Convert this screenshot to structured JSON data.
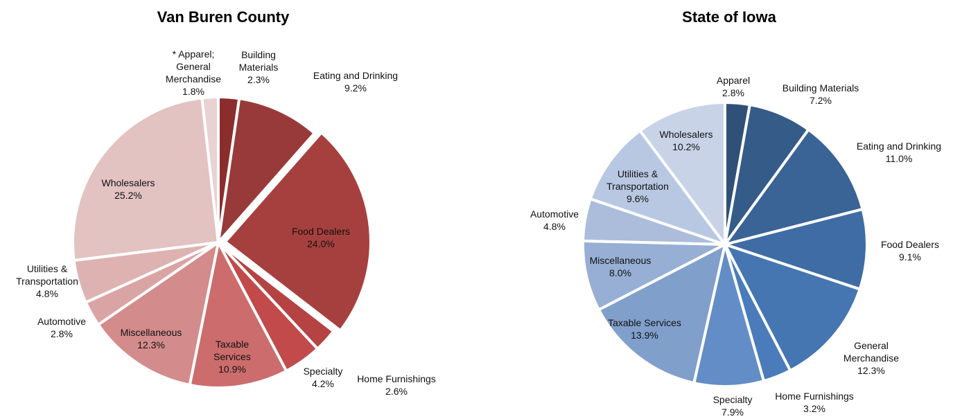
{
  "chart_data": [
    {
      "type": "pie",
      "title": "Van Buren County",
      "categories": [
        "Building Materials",
        "Eating and Drinking",
        "Food Dealers",
        "Home Furnishings",
        "Specialty",
        "Taxable Services",
        "Miscellaneous",
        "Automotive",
        "Utilities & Transportation",
        "Wholesalers",
        "* Apparel; General Merchandise"
      ],
      "values": [
        2.3,
        9.2,
        24.0,
        2.6,
        4.2,
        10.9,
        12.3,
        2.8,
        4.8,
        25.2,
        1.8
      ],
      "value_labels": [
        "2.3%",
        "9.2%",
        "24.0%",
        "2.6%",
        "4.2%",
        "10.9%",
        "12.3%",
        "2.8%",
        "4.8%",
        "25.2%",
        "1.8%"
      ],
      "colors": [
        "#8c2d2d",
        "#993a3a",
        "#a6403e",
        "#b54343",
        "#c24a4a",
        "#cc6c6c",
        "#d38b8b",
        "#dba4a4",
        "#dfb2b2",
        "#e3c2c2",
        "#e8d2d2"
      ]
    },
    {
      "type": "pie",
      "title": "State of Iowa",
      "categories": [
        "Apparel",
        "Building Materials",
        "Eating and Drinking",
        "Food Dealers",
        "General Merchandise",
        "Home Furnishings",
        "Specialty",
        "Taxable Services",
        "Miscellaneous",
        "Automotive",
        "Utilities & Transportation",
        "Wholesalers"
      ],
      "values": [
        2.8,
        7.2,
        11.0,
        9.1,
        12.3,
        3.2,
        7.9,
        13.9,
        8.0,
        4.8,
        9.6,
        10.2
      ],
      "value_labels": [
        "2.8%",
        "7.2%",
        "11.0%",
        "9.1%",
        "12.3%",
        "3.2%",
        "7.9%",
        "13.9%",
        "8.0%",
        "4.8%",
        "9.6%",
        "10.2%"
      ],
      "colors": [
        "#2f5077",
        "#355b88",
        "#3a6396",
        "#3f6ca4",
        "#4676b2",
        "#4a7cbb",
        "#628dc6",
        "#819fcb",
        "#97afd4",
        "#abbddb",
        "#b9c8e2",
        "#c8d3e8"
      ]
    }
  ]
}
